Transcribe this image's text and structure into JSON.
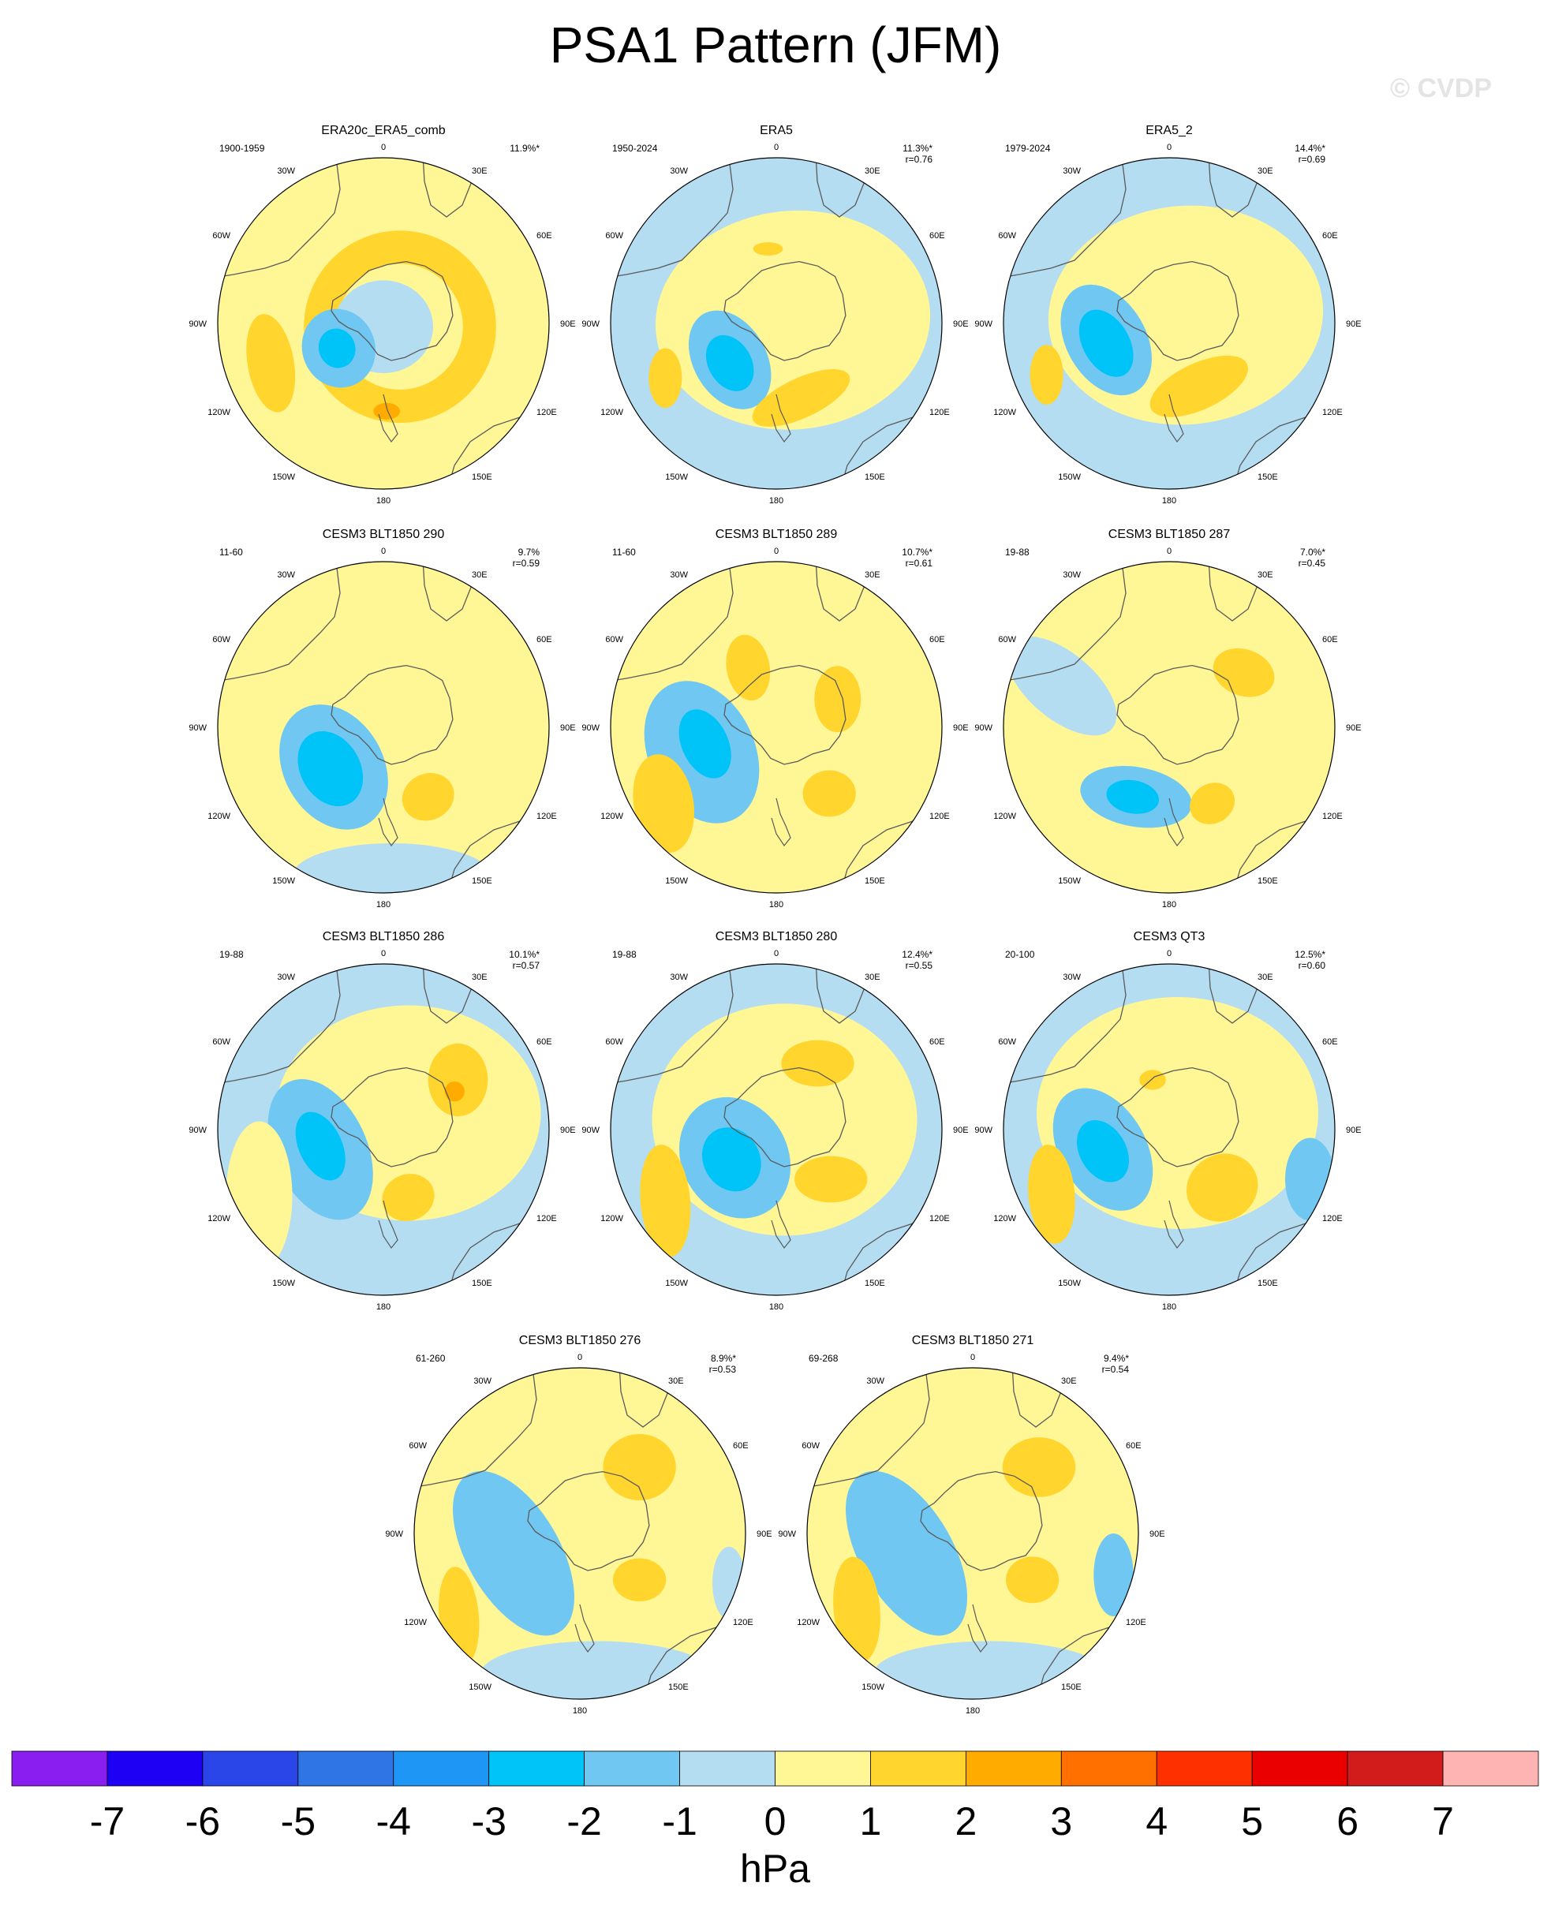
{
  "title": "PSA1 Pattern (JFM)",
  "watermark": "© CVDP",
  "longitude_labels": [
    "0",
    "30E",
    "60E",
    "90E",
    "120E",
    "150E",
    "180",
    "150W",
    "120W",
    "90W",
    "60W",
    "30W"
  ],
  "panels": [
    {
      "title": "ERA20c_ERA5_comb",
      "years": "1900-1959",
      "pct": "11.9%*",
      "r": ""
    },
    {
      "title": "ERA5",
      "years": "1950-2024",
      "pct": "11.3%*",
      "r": "r=0.76"
    },
    {
      "title": "ERA5_2",
      "years": "1979-2024",
      "pct": "14.4%*",
      "r": "r=0.69"
    },
    {
      "title": "CESM3 BLT1850 290",
      "years": "11-60",
      "pct": "9.7%",
      "r": "r=0.59"
    },
    {
      "title": "CESM3 BLT1850 289",
      "years": "11-60",
      "pct": "10.7%*",
      "r": "r=0.61"
    },
    {
      "title": "CESM3 BLT1850 287",
      "years": "19-88",
      "pct": "7.0%*",
      "r": "r=0.45"
    },
    {
      "title": "CESM3 BLT1850 286",
      "years": "19-88",
      "pct": "10.1%*",
      "r": "r=0.57"
    },
    {
      "title": "CESM3 BLT1850 280",
      "years": "19-88",
      "pct": "12.4%*",
      "r": "r=0.55"
    },
    {
      "title": "CESM3 QT3",
      "years": "20-100",
      "pct": "12.5%*",
      "r": "r=0.60"
    },
    {
      "title": "CESM3 BLT1850 276",
      "years": "61-260",
      "pct": "8.9%*",
      "r": "r=0.53"
    },
    {
      "title": "CESM3 BLT1850 271",
      "years": "69-268",
      "pct": "9.4%*",
      "r": "r=0.54"
    }
  ],
  "colorbar": {
    "unit": "hPa",
    "tick_labels": [
      "-7",
      "-6",
      "-5",
      "-4",
      "-3",
      "-2",
      "-1",
      "0",
      "1",
      "2",
      "3",
      "4",
      "5",
      "6",
      "7"
    ],
    "colors": [
      "#8a1ef0",
      "#1e00f5",
      "#2a46e8",
      "#3075e6",
      "#1e96f5",
      "#00c3f8",
      "#70c8f2",
      "#b4ddf2",
      "#fff696",
      "#ffd52e",
      "#ffab00",
      "#ff7000",
      "#ff3000",
      "#eb0000",
      "#d21c1c",
      "#ffb4b4"
    ]
  }
}
